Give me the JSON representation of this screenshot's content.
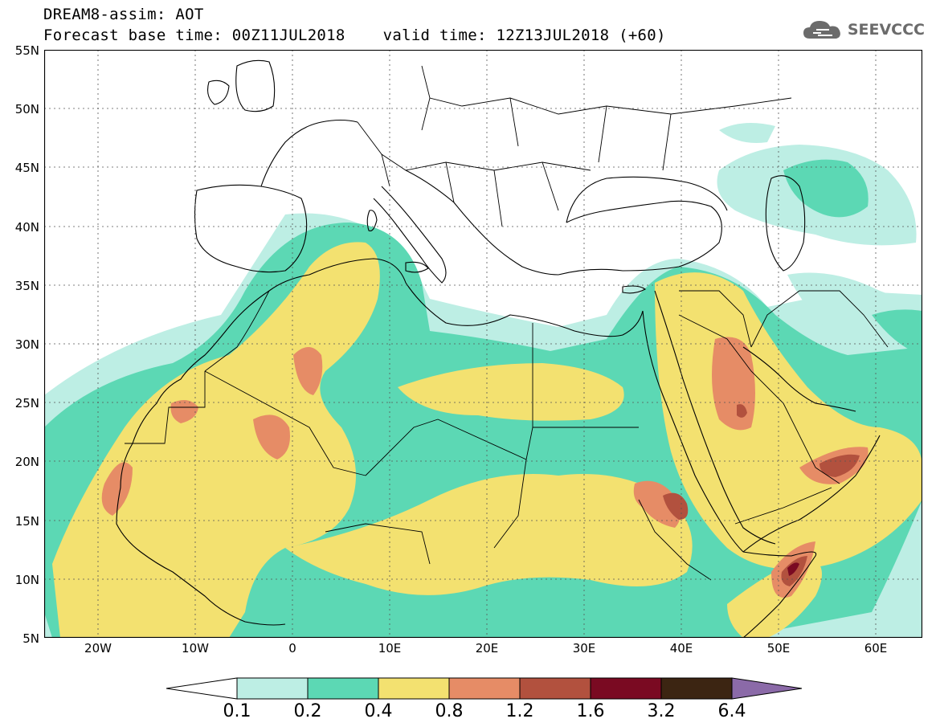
{
  "header": {
    "title_line1": "DREAM8-assim: AOT",
    "title_line2": "Forecast base time: 00Z11JUL2018    valid time: 12Z13JUL2018 (+60)"
  },
  "logo": {
    "text": "SEEVCCC",
    "icon": "cloud-logo-icon"
  },
  "map": {
    "lat_labels": [
      "55N",
      "50N",
      "45N",
      "40N",
      "35N",
      "30N",
      "25N",
      "20N",
      "15N",
      "10N",
      "5N"
    ],
    "lon_labels": [
      "20W",
      "10W",
      "0",
      "10E",
      "20E",
      "30E",
      "40E",
      "50E",
      "60E"
    ],
    "frame_color": "#000000",
    "grid_color": "#555555",
    "border_color": "#000000"
  },
  "legend": {
    "levels": [
      "0.1",
      "0.2",
      "0.4",
      "0.8",
      "1.2",
      "1.6",
      "3.2",
      "6.4"
    ],
    "colors": {
      "below": "#ffffff",
      "c1": "#bdeee4",
      "c2": "#5cd8b4",
      "c3": "#f3e170",
      "c4": "#e68c66",
      "c5": "#b2513e",
      "c6": "#7a0a22",
      "c7": "#3c2512",
      "above": "#8b6aa8"
    }
  }
}
